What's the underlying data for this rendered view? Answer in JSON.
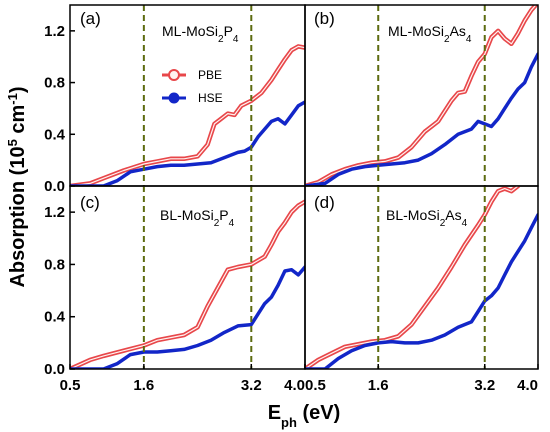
{
  "figure": {
    "ylabel": {
      "base": "Absorption (10",
      "sup1": "5",
      "mid": " cm",
      "sup2": "-1",
      "end": ")"
    },
    "xlabel": {
      "base": "E",
      "sub": "ph",
      "end": " (eV)"
    },
    "legend": {
      "pbe": "PBE",
      "hse": "HSE"
    },
    "vlines": [
      1.6,
      3.2
    ],
    "colors": {
      "pbe": "#e8474a",
      "pbe_fill": "#fff2f0",
      "hse": "#1226c8",
      "vline": "#5c6b10"
    }
  },
  "chart_data": [
    {
      "type": "line",
      "panel": "(a)",
      "material": {
        "pre": "ML-MoSi",
        "s1": "2",
        "mid": "P",
        "s2": "4"
      },
      "xlim": [
        0.5,
        4.0
      ],
      "ylim": [
        0.0,
        1.4
      ],
      "xticks": [],
      "yticks": [
        "0.0",
        "0.4",
        "0.8",
        "1.2"
      ],
      "series": [
        {
          "name": "PBE",
          "x": [
            0.5,
            0.8,
            1.0,
            1.3,
            1.6,
            1.8,
            2.0,
            2.2,
            2.4,
            2.55,
            2.65,
            2.75,
            2.85,
            2.95,
            3.05,
            3.2,
            3.35,
            3.5,
            3.6,
            3.7,
            3.8,
            3.9,
            4.0
          ],
          "y": [
            0.0,
            0.02,
            0.06,
            0.12,
            0.17,
            0.19,
            0.21,
            0.21,
            0.23,
            0.32,
            0.48,
            0.52,
            0.56,
            0.55,
            0.62,
            0.66,
            0.72,
            0.82,
            0.9,
            0.98,
            1.05,
            1.08,
            1.07
          ]
        },
        {
          "name": "HSE",
          "x": [
            0.5,
            1.0,
            1.2,
            1.4,
            1.6,
            1.8,
            2.0,
            2.2,
            2.4,
            2.6,
            2.8,
            3.0,
            3.1,
            3.2,
            3.3,
            3.4,
            3.5,
            3.6,
            3.7,
            3.8,
            3.9,
            4.0
          ],
          "y": [
            0.0,
            0.0,
            0.04,
            0.11,
            0.13,
            0.15,
            0.16,
            0.16,
            0.17,
            0.18,
            0.22,
            0.26,
            0.27,
            0.3,
            0.38,
            0.44,
            0.5,
            0.52,
            0.48,
            0.55,
            0.62,
            0.65
          ]
        }
      ]
    },
    {
      "type": "line",
      "panel": "(b)",
      "material": {
        "pre": "ML-MoSi",
        "s1": "2",
        "mid": "As",
        "s2": "4"
      },
      "xlim": [
        0.5,
        4.0
      ],
      "ylim": [
        0.0,
        1.4
      ],
      "xticks": [],
      "yticks": [],
      "series": [
        {
          "name": "PBE",
          "x": [
            0.5,
            0.7,
            0.9,
            1.1,
            1.3,
            1.5,
            1.7,
            1.9,
            2.1,
            2.3,
            2.5,
            2.7,
            2.8,
            2.9,
            3.0,
            3.1,
            3.2,
            3.3,
            3.4,
            3.5,
            3.6,
            3.7,
            3.8,
            3.9,
            4.0
          ],
          "y": [
            0.0,
            0.03,
            0.09,
            0.13,
            0.16,
            0.18,
            0.19,
            0.22,
            0.3,
            0.42,
            0.5,
            0.66,
            0.72,
            0.73,
            0.85,
            0.96,
            1.02,
            1.15,
            1.2,
            1.14,
            1.1,
            1.18,
            1.28,
            1.36,
            1.42
          ]
        },
        {
          "name": "HSE",
          "x": [
            0.5,
            0.8,
            1.0,
            1.2,
            1.4,
            1.6,
            1.8,
            2.0,
            2.2,
            2.4,
            2.6,
            2.8,
            3.0,
            3.1,
            3.2,
            3.3,
            3.4,
            3.5,
            3.6,
            3.7,
            3.8,
            3.9,
            4.0
          ],
          "y": [
            0.0,
            0.02,
            0.09,
            0.13,
            0.15,
            0.16,
            0.17,
            0.18,
            0.2,
            0.25,
            0.32,
            0.4,
            0.44,
            0.5,
            0.48,
            0.46,
            0.52,
            0.6,
            0.68,
            0.75,
            0.8,
            0.92,
            1.02
          ]
        }
      ]
    },
    {
      "type": "line",
      "panel": "(c)",
      "material": {
        "pre": "BL-MoSi",
        "s1": "2",
        "mid": "P",
        "s2": "4"
      },
      "xlim": [
        0.5,
        4.0
      ],
      "ylim": [
        0.0,
        1.4
      ],
      "xticks": [
        "0.5",
        "1.6",
        "3.2",
        "4.0"
      ],
      "yticks": [
        "0.0",
        "0.4",
        "0.8",
        "1.2"
      ],
      "series": [
        {
          "name": "PBE",
          "x": [
            0.5,
            0.8,
            1.0,
            1.3,
            1.6,
            1.8,
            2.0,
            2.2,
            2.4,
            2.55,
            2.7,
            2.85,
            3.0,
            3.2,
            3.4,
            3.5,
            3.6,
            3.7,
            3.8,
            3.9,
            4.0
          ],
          "y": [
            0.0,
            0.07,
            0.1,
            0.14,
            0.18,
            0.22,
            0.24,
            0.26,
            0.32,
            0.48,
            0.62,
            0.76,
            0.78,
            0.8,
            0.86,
            0.95,
            1.05,
            1.12,
            1.2,
            1.25,
            1.28
          ]
        },
        {
          "name": "HSE",
          "x": [
            0.5,
            1.0,
            1.2,
            1.4,
            1.6,
            1.8,
            2.0,
            2.2,
            2.4,
            2.6,
            2.8,
            3.0,
            3.2,
            3.3,
            3.4,
            3.5,
            3.6,
            3.7,
            3.8,
            3.9,
            4.0
          ],
          "y": [
            0.0,
            0.0,
            0.04,
            0.11,
            0.13,
            0.13,
            0.14,
            0.15,
            0.18,
            0.22,
            0.28,
            0.33,
            0.34,
            0.42,
            0.5,
            0.55,
            0.64,
            0.75,
            0.76,
            0.72,
            0.78
          ]
        }
      ]
    },
    {
      "type": "line",
      "panel": "(d)",
      "material": {
        "pre": "BL-MoSi",
        "s1": "2",
        "mid": "As",
        "s2": "4"
      },
      "xlim": [
        0.5,
        4.0
      ],
      "ylim": [
        0.0,
        1.4
      ],
      "xticks": [
        "0.5",
        "1.6",
        "3.2",
        "4.0"
      ],
      "yticks": [],
      "series": [
        {
          "name": "PBE",
          "x": [
            0.5,
            0.7,
            0.9,
            1.1,
            1.3,
            1.5,
            1.7,
            1.9,
            2.1,
            2.3,
            2.5,
            2.7,
            2.9,
            3.1,
            3.2,
            3.3,
            3.4,
            3.5,
            3.6,
            3.7
          ],
          "y": [
            0.0,
            0.07,
            0.12,
            0.17,
            0.19,
            0.21,
            0.22,
            0.25,
            0.34,
            0.48,
            0.62,
            0.78,
            0.95,
            1.1,
            1.18,
            1.28,
            1.36,
            1.38,
            1.36,
            1.4
          ]
        },
        {
          "name": "HSE",
          "x": [
            0.5,
            0.8,
            1.0,
            1.2,
            1.4,
            1.6,
            1.8,
            2.0,
            2.2,
            2.4,
            2.6,
            2.8,
            3.0,
            3.1,
            3.2,
            3.3,
            3.4,
            3.5,
            3.6,
            3.7,
            3.8,
            3.9,
            4.0
          ],
          "y": [
            0.0,
            0.0,
            0.08,
            0.14,
            0.18,
            0.2,
            0.21,
            0.2,
            0.2,
            0.22,
            0.26,
            0.32,
            0.36,
            0.44,
            0.52,
            0.56,
            0.62,
            0.72,
            0.82,
            0.9,
            0.98,
            1.08,
            1.18
          ]
        }
      ]
    }
  ]
}
